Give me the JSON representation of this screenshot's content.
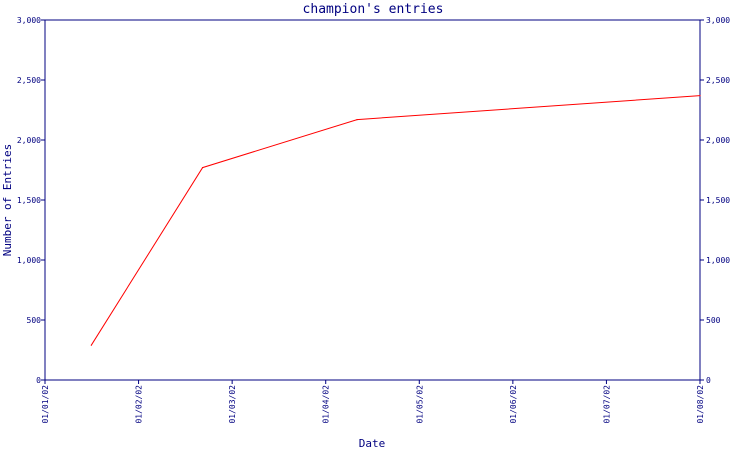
{
  "chart_data": {
    "type": "line",
    "title": "champion's entries",
    "xlabel": "Date",
    "ylabel": "Number of Entries",
    "x_ticks": [
      "01/01/02",
      "01/02/02",
      "01/03/02",
      "01/04/02",
      "01/05/02",
      "01/06/02",
      "01/07/02",
      "01/08/02"
    ],
    "y_ticks": [
      "0",
      "500",
      "1,000",
      "1,500",
      "2,000",
      "2,500",
      "3,000"
    ],
    "ylim": [
      0,
      3000
    ],
    "xlim": [
      "2002-01-01",
      "2002-08-01"
    ],
    "secondary_y_axis": true,
    "grid": false,
    "series": [
      {
        "color": "#ff0000",
        "x": [
          "2002-01-16",
          "2002-02-21",
          "2002-04-12",
          "2002-08-01"
        ],
        "y": [
          290,
          1770,
          2170,
          2370
        ]
      }
    ]
  },
  "colors": {
    "axis": "#000080",
    "line": "#ff0000",
    "background": "#ffffff"
  }
}
